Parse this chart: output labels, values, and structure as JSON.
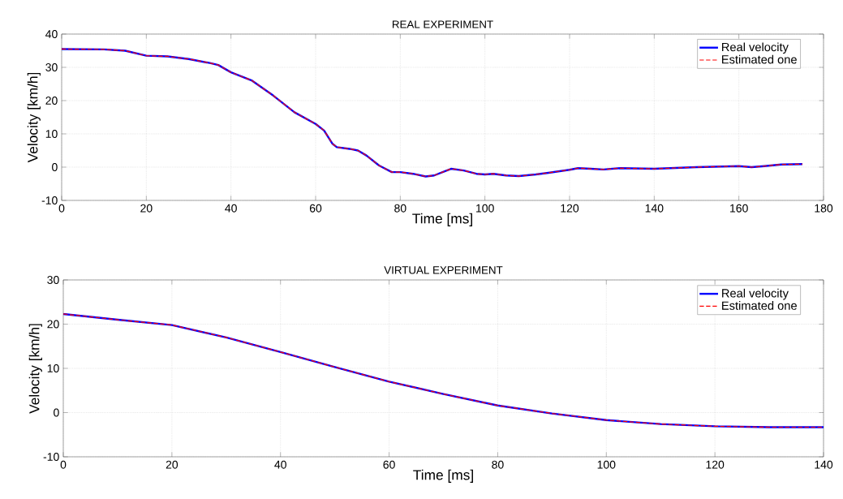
{
  "chart_data": [
    {
      "type": "line",
      "title": "REAL EXPERIMENT",
      "xlabel": "Time [ms]",
      "ylabel": "Velocity [km/h]",
      "x": [
        0,
        10,
        15,
        20,
        25,
        30,
        35,
        37,
        40,
        45,
        50,
        55,
        60,
        62,
        64,
        65,
        68,
        70,
        72,
        75,
        78,
        80,
        83,
        86,
        88,
        90,
        92,
        95,
        98,
        100,
        102,
        105,
        108,
        112,
        115,
        120,
        122,
        125,
        128,
        132,
        140,
        150,
        160,
        163,
        166,
        170,
        175
      ],
      "series": [
        {
          "name": "Real velocity",
          "color": "#0000ff",
          "line_style": "solid",
          "values": [
            35.5,
            35.4,
            35,
            33.5,
            33.3,
            32.5,
            31.3,
            30.7,
            28.5,
            26,
            21.5,
            16.5,
            13,
            11,
            7,
            6,
            5.5,
            5,
            3.5,
            0.5,
            -1.5,
            -1.5,
            -2,
            -2.8,
            -2.5,
            -1.5,
            -0.5,
            -1,
            -2,
            -2.2,
            -2,
            -2.5,
            -2.7,
            -2.2,
            -1.7,
            -0.8,
            -0.3,
            -0.5,
            -0.7,
            -0.3,
            -0.5,
            0,
            0.3,
            0,
            0.3,
            0.8,
            0.9
          ]
        },
        {
          "name": "Estimated one",
          "color": "#ff0000",
          "line_style": "dashed",
          "values": [
            35.5,
            35.4,
            35,
            33.5,
            33.3,
            32.5,
            31.3,
            30.7,
            28.5,
            26,
            21.5,
            16.5,
            13,
            11,
            7,
            6,
            5.5,
            5,
            3.5,
            0.5,
            -1.5,
            -1.5,
            -2,
            -2.8,
            -2.5,
            -1.5,
            -0.5,
            -1,
            -2,
            -2.2,
            -2,
            -2.5,
            -2.7,
            -2.2,
            -1.7,
            -0.8,
            -0.3,
            -0.5,
            -0.7,
            -0.3,
            -0.5,
            0,
            0.3,
            0,
            0.3,
            0.8,
            0.9
          ]
        }
      ],
      "xlim": [
        0,
        180
      ],
      "ylim": [
        -10,
        40
      ],
      "xticks": [
        0,
        20,
        40,
        60,
        80,
        100,
        120,
        140,
        160,
        180
      ],
      "yticks": [
        -10,
        0,
        10,
        20,
        30,
        40
      ],
      "grid": true,
      "legend": "top right"
    },
    {
      "type": "line",
      "title": "VIRTUAL EXPERIMENT",
      "xlabel": "Time [ms]",
      "ylabel": "Velocity [km/h]",
      "x": [
        0,
        10,
        20,
        30,
        40,
        50,
        60,
        70,
        80,
        90,
        100,
        110,
        120,
        130,
        140
      ],
      "series": [
        {
          "name": "Real velocity",
          "color": "#0000ff",
          "line_style": "solid",
          "values": [
            22.3,
            21,
            19.8,
            17,
            13.7,
            10.3,
            7,
            4.2,
            1.6,
            -0.2,
            -1.7,
            -2.6,
            -3.1,
            -3.3,
            -3.3
          ]
        },
        {
          "name": "Estimated one",
          "color": "#ff0000",
          "line_style": "dashed",
          "values": [
            22.3,
            21,
            19.8,
            17,
            13.7,
            10.3,
            7,
            4.2,
            1.6,
            -0.2,
            -1.7,
            -2.6,
            -3.1,
            -3.3,
            -3.3
          ]
        }
      ],
      "xlim": [
        0,
        140
      ],
      "ylim": [
        -10,
        30
      ],
      "xticks": [
        0,
        20,
        40,
        60,
        80,
        100,
        120,
        140
      ],
      "yticks": [
        -10,
        0,
        10,
        20,
        30
      ],
      "grid": true,
      "legend": "top right"
    }
  ]
}
